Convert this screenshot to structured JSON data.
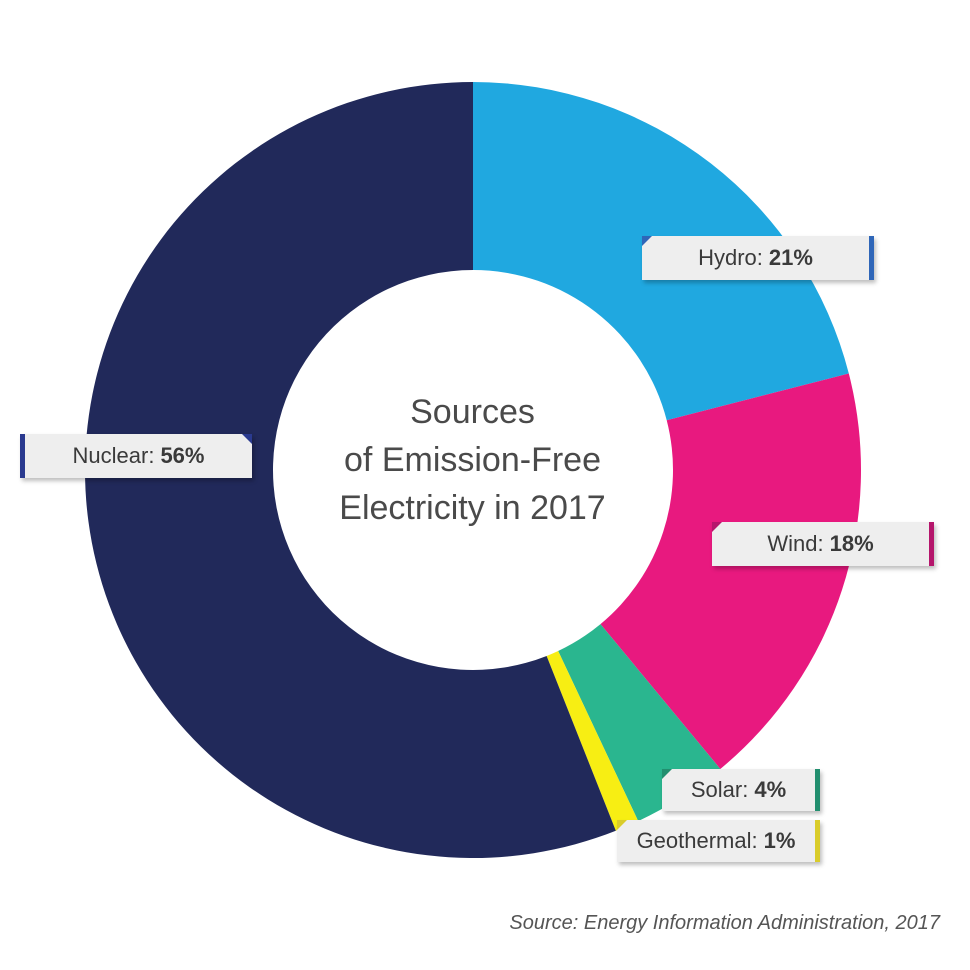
{
  "title_lines": [
    "Sources",
    "of Emission-Free",
    "Electricity in 2017"
  ],
  "source": "Source: Energy Information Administration, 2017",
  "chart_data": {
    "type": "pie",
    "donut": true,
    "categories": [
      "Hydro",
      "Wind",
      "Solar",
      "Geothermal",
      "Nuclear"
    ],
    "values": [
      21,
      18,
      4,
      1,
      56
    ],
    "colors": [
      "#20a8e0",
      "#e8197f",
      "#2ab68f",
      "#f7ee13",
      "#21295a"
    ],
    "labels": [
      {
        "name": "Hydro:",
        "pct": "21%"
      },
      {
        "name": "Wind:",
        "pct": "18%"
      },
      {
        "name": "Solar:",
        "pct": "4%"
      },
      {
        "name": "Geothermal:",
        "pct": "1%"
      },
      {
        "name": "Nuclear:",
        "pct": "56%"
      }
    ],
    "title": "Sources of Emission-Free Electricity in 2017"
  }
}
